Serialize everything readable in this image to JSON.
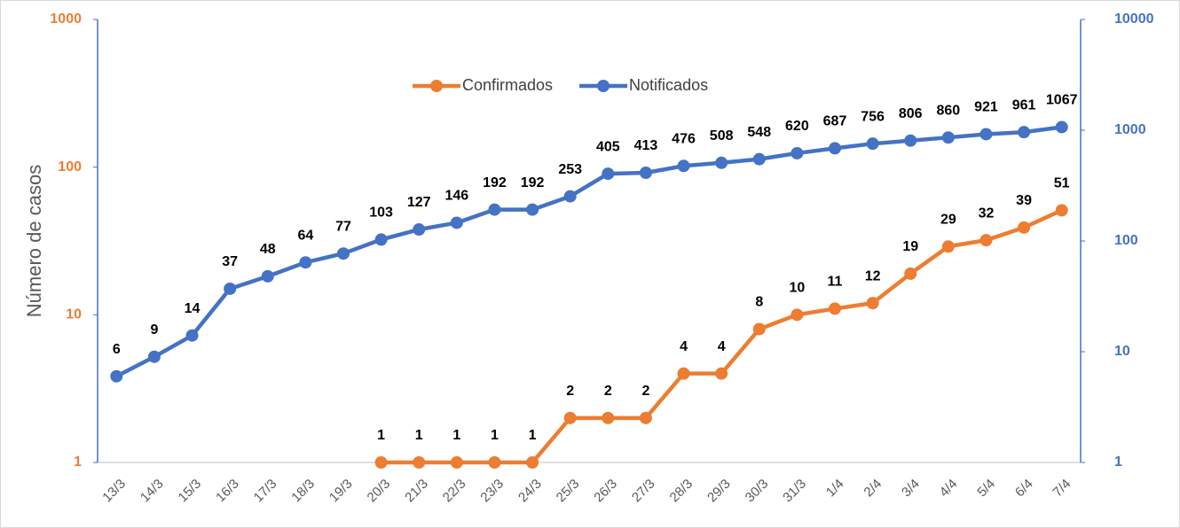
{
  "chart_data": {
    "type": "line",
    "y_label": "Número de casos",
    "categories": [
      "13/3",
      "14/3",
      "15/3",
      "16/3",
      "17/3",
      "18/3",
      "19/3",
      "20/3",
      "21/3",
      "22/3",
      "23/3",
      "24/3",
      "25/3",
      "26/3",
      "27/3",
      "28/3",
      "29/3",
      "30/3",
      "31/3",
      "1/4",
      "2/4",
      "3/4",
      "4/4",
      "5/4",
      "6/4",
      "7/4"
    ],
    "series": [
      {
        "name": "Confirmados",
        "color": "#ed7d31",
        "axis": "y",
        "values": [
          null,
          null,
          null,
          null,
          null,
          null,
          null,
          1,
          1,
          1,
          1,
          1,
          2,
          2,
          2,
          4,
          4,
          8,
          10,
          11,
          12,
          19,
          29,
          32,
          39,
          51
        ]
      },
      {
        "name": "Notificados",
        "color": "#4472c4",
        "axis": "y2",
        "values": [
          6,
          9,
          14,
          37,
          48,
          64,
          77,
          103,
          127,
          146,
          192,
          192,
          253,
          405,
          413,
          476,
          508,
          548,
          620,
          687,
          756,
          806,
          860,
          921,
          961,
          1067
        ]
      }
    ],
    "ylim": [
      1,
      1000
    ],
    "yticks": [
      1,
      10,
      100,
      1000
    ],
    "ylog": true,
    "y_color": "#ed7d31",
    "y2lim": [
      1,
      10000
    ],
    "y2ticks": [
      1,
      10,
      100,
      1000,
      10000
    ],
    "y2log": true,
    "y2_color": "#4472c4",
    "legend": "top"
  }
}
